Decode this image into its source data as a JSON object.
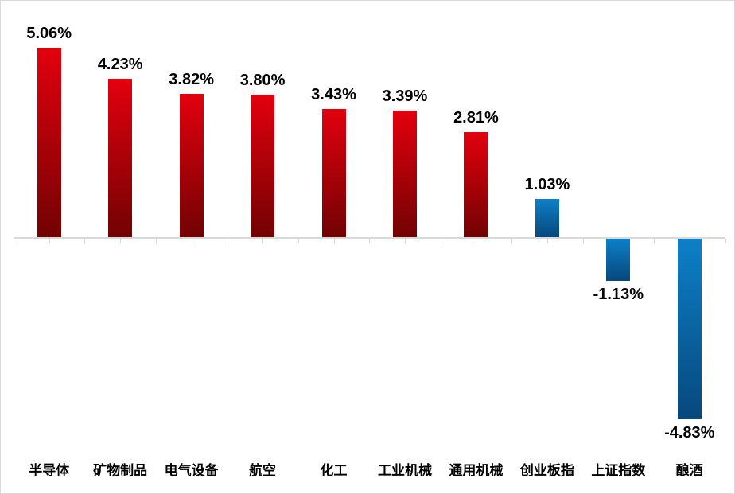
{
  "chart_data": {
    "type": "bar",
    "title": "",
    "xlabel": "",
    "ylabel": "",
    "grid": false,
    "legend": false,
    "ylim": [
      -5.5,
      5.5
    ],
    "categories": [
      "半导体",
      "矿物制品",
      "电气设备",
      "航空",
      "化工",
      "工业机械",
      "通用机械",
      "创业板指",
      "上证指数",
      "酿酒"
    ],
    "values": [
      5.06,
      4.23,
      3.82,
      3.8,
      3.43,
      3.39,
      2.81,
      1.03,
      -1.13,
      -4.83
    ],
    "value_labels": [
      "5.06%",
      "4.23%",
      "3.82%",
      "3.80%",
      "3.43%",
      "3.39%",
      "2.81%",
      "1.03%",
      "-1.13%",
      "-4.83%"
    ],
    "bar_color_type": [
      "red",
      "red",
      "red",
      "red",
      "red",
      "red",
      "red",
      "blue",
      "blue",
      "blue"
    ],
    "colors": {
      "red_gradient_top": "#e3000e",
      "red_gradient_bottom": "#720202",
      "blue_gradient_top": "#0d80c8",
      "blue_gradient_bottom": "#07487c",
      "axis": "#d9d9d9",
      "border": "#d9d9d9",
      "label_text": "#000000",
      "background": "#ffffff"
    }
  }
}
